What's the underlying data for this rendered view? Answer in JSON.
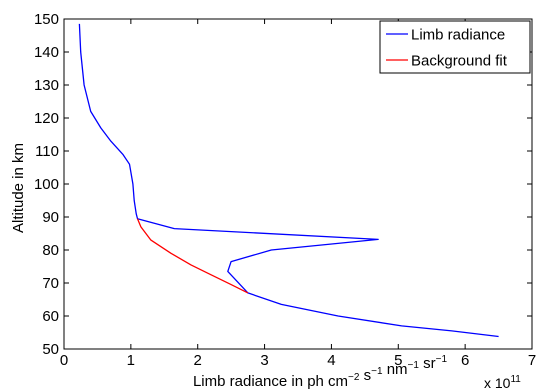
{
  "chart_data": {
    "type": "line",
    "title": "",
    "xlabel_base": "Limb radiance in ph cm",
    "xlabel_parts": [
      {
        "text": "Limb radiance in ph cm",
        "sup": "−2"
      },
      {
        "text": " s",
        "sup": "−1"
      },
      {
        "text": " nm",
        "sup": "−1"
      },
      {
        "text": " sr",
        "sup": "−1"
      }
    ],
    "x_multiplier": {
      "base": "x 10",
      "exp": "11"
    },
    "ylabel": "Altitude in km",
    "xlim": [
      0,
      7
    ],
    "ylim": [
      50,
      150
    ],
    "xticks": [
      0,
      1,
      2,
      3,
      4,
      5,
      6,
      7
    ],
    "yticks": [
      50,
      60,
      70,
      80,
      90,
      100,
      110,
      120,
      130,
      140,
      150
    ],
    "grid": false,
    "legend_position": "top-right",
    "series": [
      {
        "name": "Limb radiance",
        "color": "#0000ff",
        "x": [
          0.23,
          0.25,
          0.3,
          0.4,
          0.55,
          0.7,
          0.88,
          0.98,
          1.03,
          1.05,
          1.08,
          1.1,
          1.65,
          4.7,
          3.1,
          2.5,
          2.45,
          2.75,
          3.25,
          4.1,
          5.05,
          5.8,
          6.5
        ],
        "y": [
          148.5,
          140,
          130,
          122,
          117,
          113,
          109,
          106,
          100,
          95,
          91,
          89.5,
          86.5,
          83.2,
          80,
          76.5,
          73.5,
          67,
          63.5,
          60,
          57,
          55.5,
          53.8
        ]
      },
      {
        "name": "Background fit",
        "color": "#ff0000",
        "x": [
          1.1,
          1.15,
          1.3,
          1.6,
          1.9,
          2.2,
          2.5,
          2.75
        ],
        "y": [
          89.5,
          87,
          83,
          79,
          75.5,
          72.5,
          69.5,
          67
        ]
      }
    ]
  }
}
